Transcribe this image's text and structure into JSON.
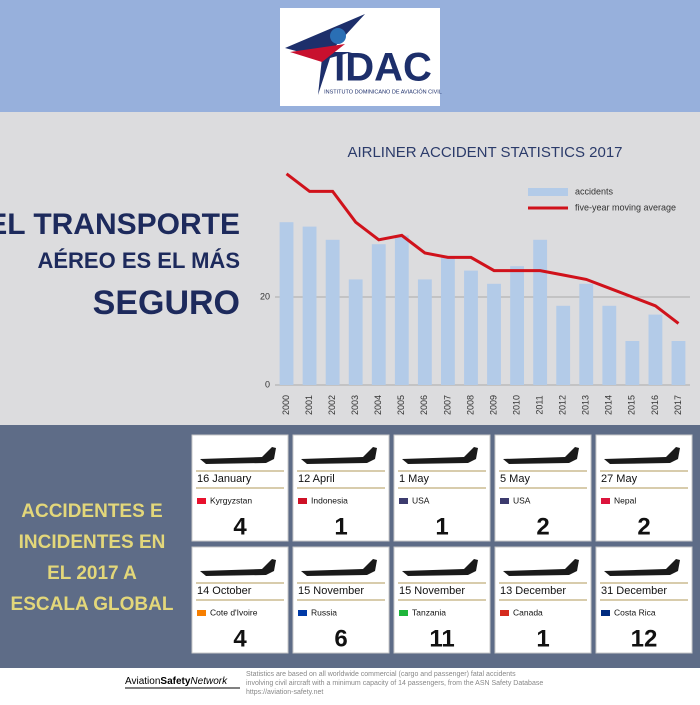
{
  "header": {
    "logo": "IDAC",
    "logo_subtitle": "INSTITUTO DOMINICANO DE AVIACIÓN CIVIL"
  },
  "headline": {
    "lines": [
      "EL TRANSPORTE",
      "AÉREO ES EL MÁS",
      "SEGURO"
    ]
  },
  "chart_data": {
    "type": "bar-line",
    "title": "AIRLINER ACCIDENT STATISTICS 2017",
    "categories": [
      "2000",
      "2001",
      "2002",
      "2003",
      "2004",
      "2005",
      "2006",
      "2007",
      "2008",
      "2009",
      "2010",
      "2011",
      "2012",
      "2013",
      "2014",
      "2015",
      "2016",
      "2017"
    ],
    "series": [
      {
        "name": "accidents",
        "type": "bar",
        "color": "#b3cbe8",
        "values": [
          37,
          36,
          33,
          24,
          32,
          34,
          24,
          29,
          26,
          23,
          27,
          33,
          18,
          23,
          18,
          10,
          16,
          10
        ]
      },
      {
        "name": "five-year moving average",
        "type": "line",
        "color": "#d0121b",
        "values": [
          48,
          44,
          44,
          37,
          33,
          34,
          30,
          29,
          29,
          26,
          26,
          26,
          25,
          24,
          22,
          20,
          18,
          14
        ]
      }
    ],
    "ylim": [
      0,
      50
    ],
    "yticks": [
      0,
      20
    ],
    "grid": true,
    "legend": "upper right"
  },
  "section": {
    "title_lines": [
      "ACCIDENTES E",
      "INCIDENTES EN",
      "EL 2017 A",
      "ESCALA GLOBAL"
    ]
  },
  "cards": [
    {
      "date": "16 January",
      "country": "Kyrgyzstan",
      "number": "4"
    },
    {
      "date": "12 April",
      "country": "Indonesia",
      "number": "1"
    },
    {
      "date": "1 May",
      "country": "USA",
      "number": "1"
    },
    {
      "date": "5 May",
      "country": "USA",
      "number": "2"
    },
    {
      "date": "27 May",
      "country": "Nepal",
      "number": "2"
    },
    {
      "date": "14 October",
      "country": "Cote d'Ivoire",
      "number": "4"
    },
    {
      "date": "15 November",
      "country": "Russia",
      "number": "6"
    },
    {
      "date": "15 November",
      "country": "Tanzania",
      "number": "11"
    },
    {
      "date": "13 December",
      "country": "Canada",
      "number": "1"
    },
    {
      "date": "31 December",
      "country": "Costa Rica",
      "number": "12"
    }
  ],
  "footer": {
    "brand": [
      "Aviation",
      "Safety",
      "Network"
    ],
    "notes": [
      "Statistics are based on all worldwide commercial (cargo and passenger) fatal accidents",
      "involving civil aircraft with a minimum capacity of 14 passengers, from the ASN Safety Database",
      "https://aviation-safety.net"
    ]
  }
}
